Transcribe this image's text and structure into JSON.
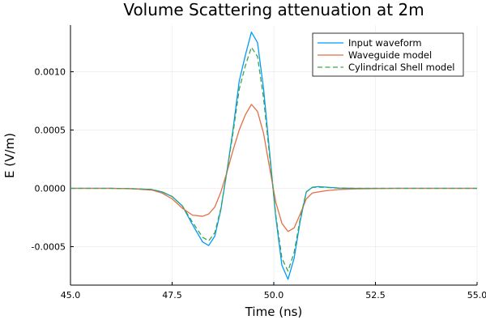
{
  "chart_data": {
    "type": "line",
    "title": "Volume Scattering attenuation at 2m",
    "xlabel": "Time (ns)",
    "ylabel": "E (V/m)",
    "xlim": [
      45.0,
      55.0
    ],
    "ylim": [
      -0.00083,
      0.0014
    ],
    "xticks": [
      45.0,
      47.5,
      50.0,
      52.5,
      55.0
    ],
    "xtick_labels": [
      "45.0",
      "47.5",
      "50.0",
      "52.5",
      "55.0"
    ],
    "yticks": [
      -0.0005,
      0.0,
      0.0005,
      0.001
    ],
    "ytick_labels": [
      "-0.0005",
      "0.0000",
      "0.0005",
      "0.0010"
    ],
    "grid": true,
    "legend_position": "top-right",
    "x": [
      45.0,
      46.0,
      46.5,
      47.0,
      47.25,
      47.5,
      47.75,
      48.0,
      48.25,
      48.4,
      48.55,
      48.7,
      48.85,
      49.0,
      49.15,
      49.3,
      49.45,
      49.6,
      49.75,
      49.9,
      50.05,
      50.2,
      50.35,
      50.5,
      50.65,
      50.8,
      50.95,
      51.1,
      51.3,
      51.6,
      52.0,
      53.0,
      55.0
    ],
    "series": [
      {
        "name": "Input waveform",
        "color": "#009AFA",
        "dash": "solid",
        "values": [
          0,
          0,
          -3e-06,
          -1e-05,
          -3e-05,
          -7e-05,
          -0.00015,
          -0.00031,
          -0.00046,
          -0.00049,
          -0.00041,
          -0.00018,
          0.00015,
          0.00051,
          0.00092,
          0.00114,
          0.00134,
          0.00125,
          0.00085,
          0.0003,
          -0.00025,
          -0.00066,
          -0.00078,
          -0.0006,
          -0.00028,
          -3e-05,
          1e-05,
          1.5e-05,
          1e-05,
          3e-06,
          0,
          0,
          0
        ]
      },
      {
        "name": "Waveguide model",
        "color": "#E26F46",
        "dash": "solid",
        "values": [
          0,
          0,
          -3e-06,
          -1.5e-05,
          -4e-05,
          -9e-05,
          -0.00017,
          -0.00023,
          -0.00024,
          -0.00022,
          -0.00016,
          -3e-05,
          0.00014,
          0.00033,
          0.0005,
          0.00063,
          0.00072,
          0.00066,
          0.00047,
          0.00017,
          -0.00012,
          -0.0003,
          -0.00037,
          -0.00034,
          -0.00022,
          -9e-05,
          -4e-05,
          -3e-05,
          -2e-05,
          -1e-05,
          -5e-06,
          0,
          0
        ]
      },
      {
        "name": "Cylindrical Shell model",
        "color": "#3DA44D",
        "dash": "dashed",
        "values": [
          0,
          0,
          -3e-06,
          -1e-05,
          -3e-05,
          -7e-05,
          -0.00015,
          -0.00029,
          -0.00042,
          -0.00045,
          -0.00038,
          -0.00017,
          0.00015,
          0.00048,
          0.00085,
          0.00105,
          0.00121,
          0.00113,
          0.00077,
          0.00027,
          -0.00023,
          -0.0006,
          -0.00071,
          -0.00055,
          -0.00026,
          -3e-05,
          8e-06,
          1e-05,
          8e-06,
          2e-06,
          0,
          0,
          0
        ]
      }
    ]
  }
}
